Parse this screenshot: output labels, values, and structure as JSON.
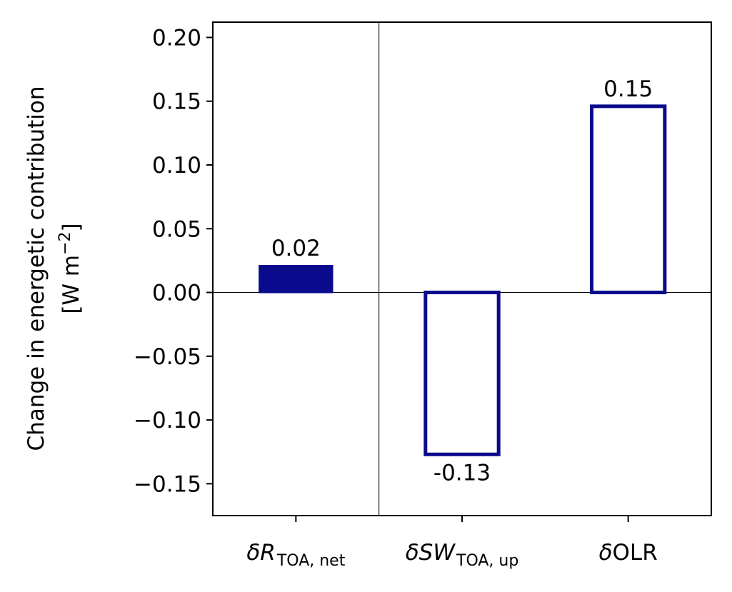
{
  "chart_data": {
    "type": "bar",
    "categories": [
      {
        "prefix": "δ",
        "symbol": "R",
        "subscript": "TOA, net",
        "symbol_italic": true
      },
      {
        "prefix": "δ",
        "symbol": "SW",
        "subscript": "TOA, up",
        "symbol_italic": true
      },
      {
        "prefix": "δ",
        "symbol": "OLR",
        "subscript": "",
        "symbol_italic": false
      }
    ],
    "values": [
      0.021,
      -0.127,
      0.146
    ],
    "data_labels": [
      "0.02",
      "-0.13",
      "0.15"
    ],
    "bar_styles": [
      "filled",
      "outline",
      "outline"
    ],
    "bar_color": "#0a0a8c",
    "ylabel_line1": "Change in energetic contribution",
    "ylabel_line2_prefix": "[W m",
    "ylabel_line2_sup": "−2",
    "ylabel_line2_suffix": "]",
    "ylim": [
      -0.175,
      0.212
    ],
    "yticks": [
      0.2,
      0.15,
      0.1,
      0.05,
      0.0,
      -0.05,
      -0.1,
      -0.15
    ],
    "ytick_labels": [
      "0.20",
      "0.15",
      "0.10",
      "0.05",
      "0.00",
      "−0.05",
      "−0.10",
      "−0.15"
    ],
    "zero_line": true,
    "separator_after_category": 0,
    "grid": false
  }
}
